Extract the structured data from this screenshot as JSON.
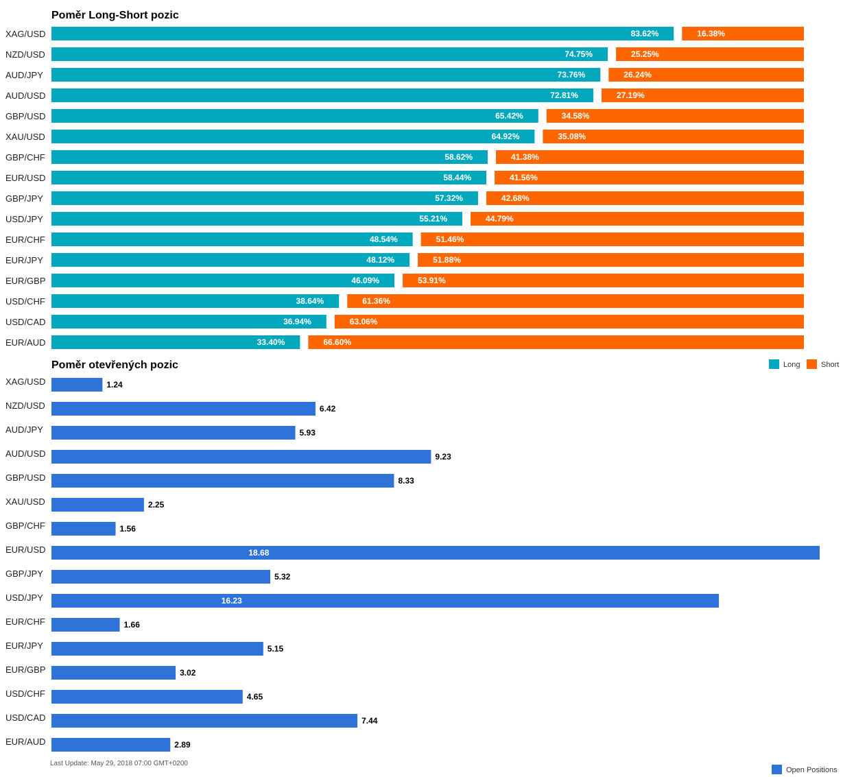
{
  "chart_data": [
    {
      "type": "bar",
      "orientation": "horizontal",
      "stacked": true,
      "title": "Poměr Long-Short pozic",
      "categories": [
        "XAG/USD",
        "NZD/USD",
        "AUD/JPY",
        "AUD/USD",
        "GBP/USD",
        "XAU/USD",
        "GBP/CHF",
        "EUR/USD",
        "GBP/JPY",
        "USD/JPY",
        "EUR/CHF",
        "EUR/JPY",
        "EUR/GBP",
        "USD/CHF",
        "USD/CAD",
        "EUR/AUD"
      ],
      "series": [
        {
          "name": "Long",
          "color": "#00a7bd",
          "values": [
            83.62,
            74.75,
            73.76,
            72.81,
            65.42,
            64.92,
            58.62,
            58.44,
            57.32,
            55.21,
            48.54,
            48.12,
            46.09,
            38.64,
            36.94,
            33.4
          ],
          "labels": [
            "83.62%",
            "74.75%",
            "73.76%",
            "72.81%",
            "65.42%",
            "64.92%",
            "58.62%",
            "58.44%",
            "57.32%",
            "55.21%",
            "48.54%",
            "48.12%",
            "46.09%",
            "38.64%",
            "36.94%",
            "33.40%"
          ]
        },
        {
          "name": "Short",
          "color": "#ff6600",
          "values": [
            16.38,
            25.25,
            26.24,
            27.19,
            34.58,
            35.08,
            41.38,
            41.56,
            42.68,
            44.79,
            51.46,
            51.88,
            53.91,
            61.36,
            63.06,
            66.6
          ],
          "labels": [
            "16.38%",
            "25.25%",
            "26.24%",
            "27.19%",
            "34.58%",
            "35.08%",
            "41.38%",
            "41.56%",
            "42.68%",
            "44.79%",
            "51.46%",
            "51.88%",
            "53.91%",
            "61.36%",
            "63.06%",
            "66.60%"
          ]
        }
      ],
      "xlim": [
        0,
        100
      ],
      "legend_position": "bottom-right"
    },
    {
      "type": "bar",
      "orientation": "horizontal",
      "title": "Poměr otevřených pozic",
      "categories": [
        "XAG/USD",
        "NZD/USD",
        "AUD/JPY",
        "AUD/USD",
        "GBP/USD",
        "XAU/USD",
        "GBP/CHF",
        "EUR/USD",
        "GBP/JPY",
        "USD/JPY",
        "EUR/CHF",
        "EUR/JPY",
        "EUR/GBP",
        "USD/CHF",
        "USD/CAD",
        "EUR/AUD"
      ],
      "series": [
        {
          "name": "Open Positions",
          "color": "#2f72d9",
          "values": [
            1.24,
            6.42,
            5.93,
            9.23,
            8.33,
            2.25,
            1.56,
            18.68,
            5.32,
            16.23,
            1.66,
            5.15,
            3.02,
            4.65,
            7.44,
            2.89
          ],
          "labels": [
            "1.24",
            "6.42",
            "5.93",
            "9.23",
            "8.33",
            "2.25",
            "1.56",
            "18.68",
            "5.32",
            "16.23",
            "1.66",
            "5.15",
            "3.02",
            "4.65",
            "7.44",
            "2.89"
          ]
        }
      ],
      "legend_position": "bottom-right"
    }
  ],
  "footer": {
    "last_update": "Last Update: May 29, 2018 07:00 GMT+0200"
  }
}
